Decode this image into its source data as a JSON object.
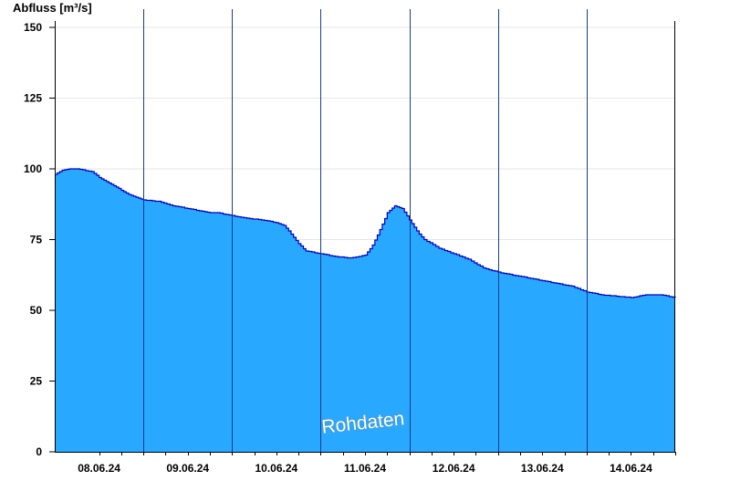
{
  "chart_data": {
    "type": "area",
    "ylabel": "Abfluss [m³/s]",
    "ylim": [
      0,
      150
    ],
    "yticks": [
      0,
      25,
      50,
      75,
      100,
      125,
      150
    ],
    "grid": true,
    "x_start": "2024-06-07T12:00",
    "x_end": "2024-06-14T12:00",
    "day_labels": [
      "08.06.24",
      "09.06.24",
      "10.06.24",
      "11.06.24",
      "12.06.24",
      "13.06.24",
      "14.06.24"
    ],
    "day_boundaries": [
      "2024-06-08T12:00",
      "2024-06-09T12:00",
      "2024-06-10T12:00",
      "2024-06-11T12:00",
      "2024-06-12T12:00",
      "2024-06-13T12:00"
    ],
    "watermark": "Rohdaten",
    "colors": {
      "fill": "#29a8ff",
      "line": "#0000c0",
      "boundary": "#1a3c8c",
      "grid": "#e6e6e6"
    },
    "series": [
      {
        "x": [
          "2024-06-07T12:00",
          "2024-06-07T14:00",
          "2024-06-07T16:00",
          "2024-06-07T18:00",
          "2024-06-07T22:00",
          "2024-06-08T00:00",
          "2024-06-08T02:00",
          "2024-06-08T04:00",
          "2024-06-08T06:00",
          "2024-06-08T08:00",
          "2024-06-08T10:00",
          "2024-06-08T12:00",
          "2024-06-08T16:00",
          "2024-06-08T20:00",
          "2024-06-09T00:00",
          "2024-06-09T04:00",
          "2024-06-09T06:00",
          "2024-06-09T08:00",
          "2024-06-09T12:00",
          "2024-06-09T16:00",
          "2024-06-09T20:00",
          "2024-06-10T00:00",
          "2024-06-10T02:00",
          "2024-06-10T04:00",
          "2024-06-10T06:00",
          "2024-06-10T08:00",
          "2024-06-10T12:00",
          "2024-06-10T16:00",
          "2024-06-10T20:00",
          "2024-06-11T00:00",
          "2024-06-11T02:00",
          "2024-06-11T04:00",
          "2024-06-11T06:00",
          "2024-06-11T08:00",
          "2024-06-11T10:00",
          "2024-06-11T12:00",
          "2024-06-11T14:00",
          "2024-06-11T16:00",
          "2024-06-11T20:00",
          "2024-06-12T00:00",
          "2024-06-12T04:00",
          "2024-06-12T08:00",
          "2024-06-12T12:00",
          "2024-06-12T16:00",
          "2024-06-12T20:00",
          "2024-06-13T00:00",
          "2024-06-13T04:00",
          "2024-06-13T08:00",
          "2024-06-13T12:00",
          "2024-06-13T16:00",
          "2024-06-13T20:00",
          "2024-06-14T00:00",
          "2024-06-14T04:00",
          "2024-06-14T08:00",
          "2024-06-14T12:00"
        ],
        "y": [
          98,
          99.5,
          100,
          100,
          99,
          97,
          95.5,
          94,
          92.5,
          91,
          90,
          89,
          88.5,
          87,
          86,
          85,
          84.5,
          84.5,
          83.5,
          82.5,
          82,
          81,
          80,
          77,
          73.5,
          71,
          70,
          69,
          68.5,
          69.5,
          73,
          78.5,
          84.5,
          87,
          86,
          82,
          78,
          75,
          72,
          70,
          68,
          65,
          63.5,
          62.5,
          61.5,
          60.5,
          59.5,
          58.5,
          56.5,
          55.5,
          55,
          54.5,
          55.5,
          55.5,
          54.5
        ]
      }
    ]
  }
}
